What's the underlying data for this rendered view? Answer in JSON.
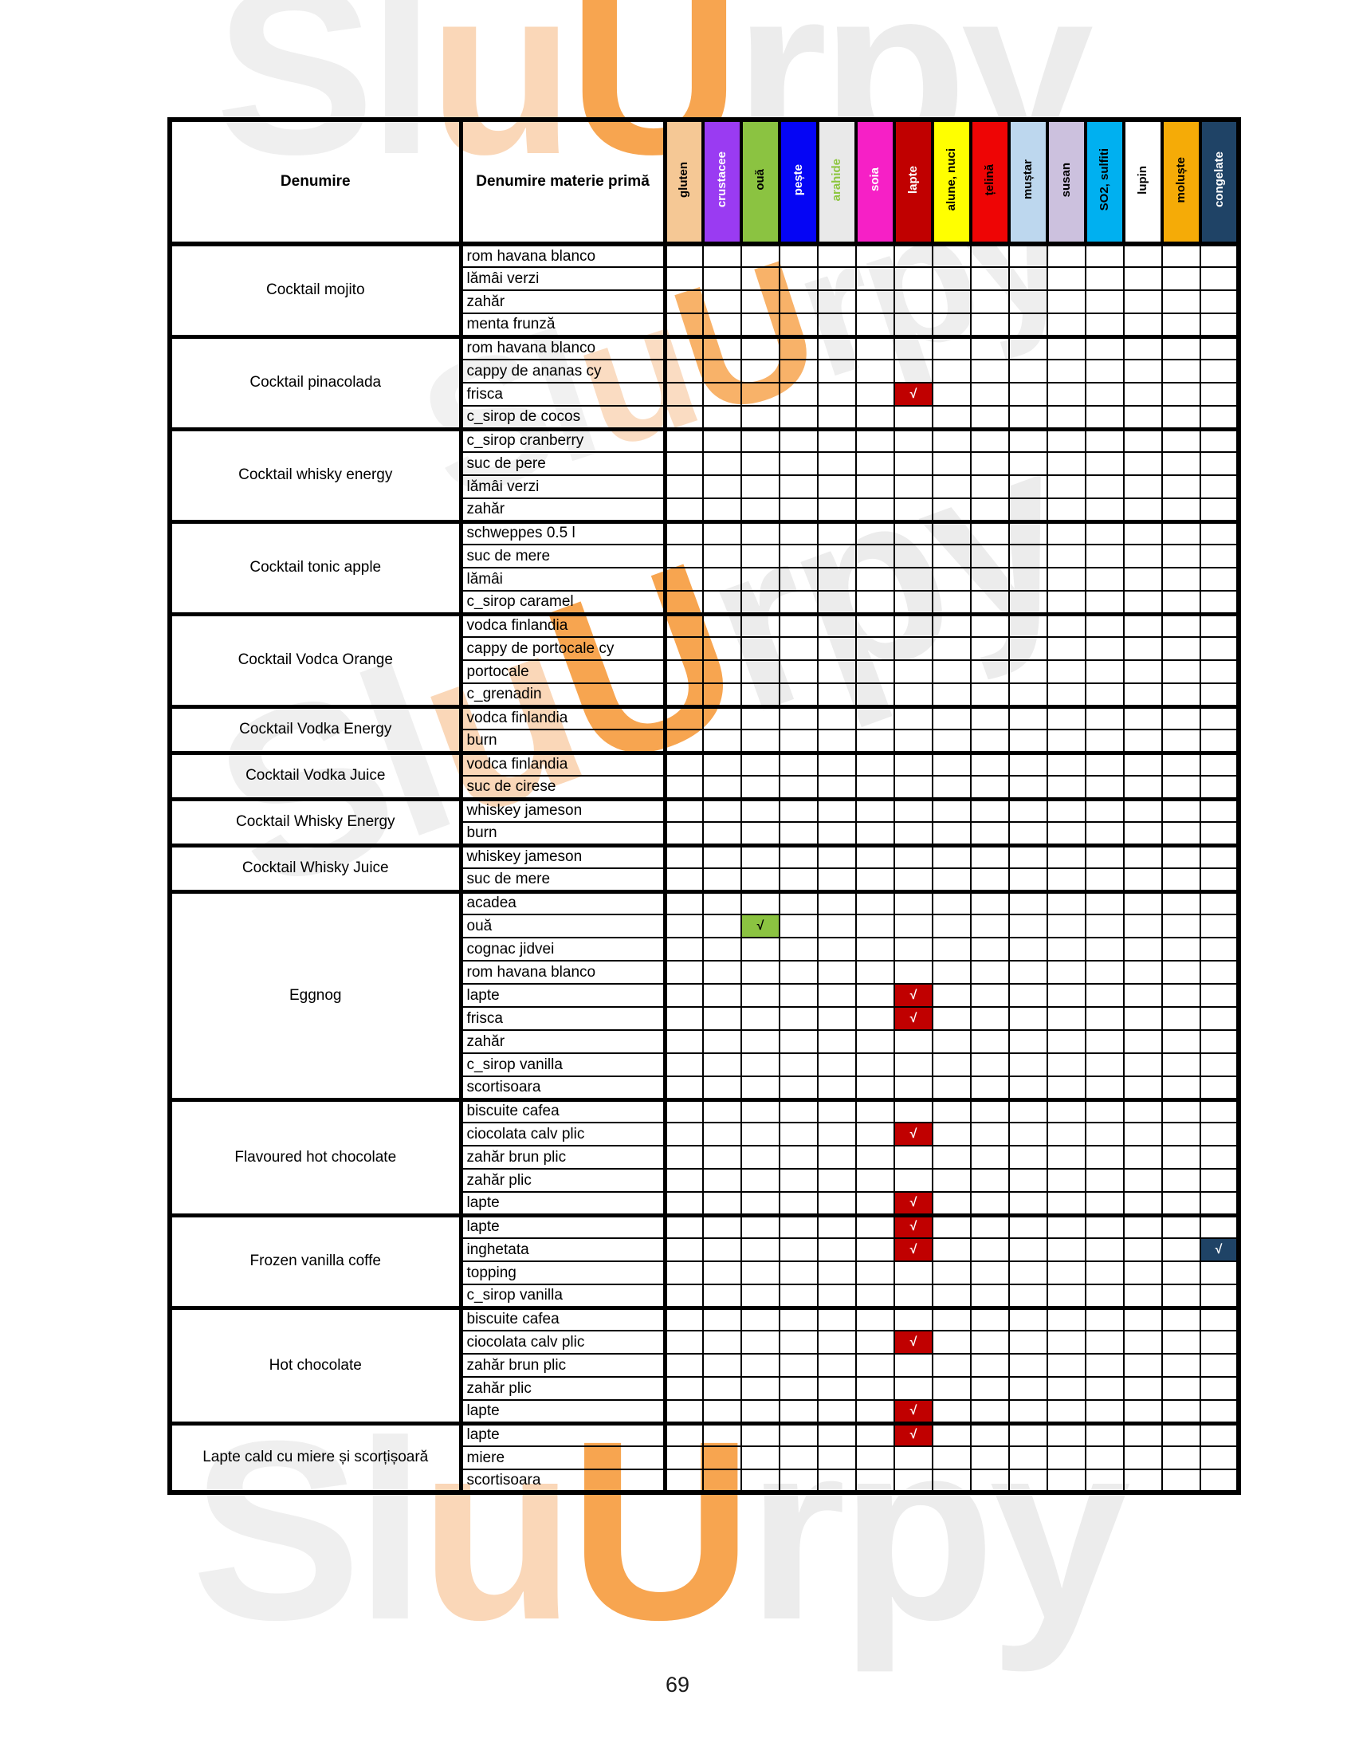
{
  "page": {
    "number": "69"
  },
  "watermark": {
    "text": "SluUrpy",
    "letter_colors": [
      "#EFEFEF",
      "#EFEFEF",
      "#FAD7B8",
      "#F7A550",
      "#ECECEC",
      "#ECECEC",
      "#ECECEC"
    ]
  },
  "table": {
    "column_headers": {
      "denumire": "Denumire",
      "materie_prima": "Denumire materie primă"
    },
    "check_mark": "√",
    "allergen_columns": [
      {
        "label": "gluten",
        "bg": "#F5C895",
        "fg": "#000000"
      },
      {
        "label": "crustacee",
        "bg": "#9A3BF2",
        "fg": "#FFFFFF"
      },
      {
        "label": "ouă",
        "bg": "#8BC341",
        "fg": "#000000"
      },
      {
        "label": "pește",
        "bg": "#0505F5",
        "fg": "#FFFFFF"
      },
      {
        "label": "arahide",
        "bg": "#E9E9E9",
        "fg": "#8DC63F"
      },
      {
        "label": "soia",
        "bg": "#F620C6",
        "fg": "#FFFFFF"
      },
      {
        "label": "lapte",
        "bg": "#C00000",
        "fg": "#FFFFFF"
      },
      {
        "label": "alune, nuci",
        "bg": "#FFFF00",
        "fg": "#000000"
      },
      {
        "label": "țelină",
        "bg": "#EE0505",
        "fg": "#000000"
      },
      {
        "label": "muștar",
        "bg": "#BDD7EE",
        "fg": "#000000"
      },
      {
        "label": "susan",
        "bg": "#CCC1DE",
        "fg": "#000000"
      },
      {
        "label": "SO2, sulfiti",
        "bg": "#00B0F0",
        "fg": "#000000"
      },
      {
        "label": "lupin",
        "bg": "#FFFFFF",
        "fg": "#000000"
      },
      {
        "label": "moluște",
        "bg": "#F5AB07",
        "fg": "#000000"
      },
      {
        "label": "congelate",
        "bg": "#1F4366",
        "fg": "#FFFFFF"
      }
    ],
    "groups": [
      {
        "name": "Cocktail mojito",
        "ingredients": [
          {
            "name": "rom havana blanco",
            "marks": []
          },
          {
            "name": "lămâi verzi",
            "marks": []
          },
          {
            "name": "zahăr",
            "marks": []
          },
          {
            "name": "menta frunză",
            "marks": []
          }
        ]
      },
      {
        "name": "Cocktail pinacolada",
        "ingredients": [
          {
            "name": "rom havana blanco",
            "marks": []
          },
          {
            "name": "cappy de ananas cy",
            "marks": []
          },
          {
            "name": "frisca",
            "marks": [
              6
            ]
          },
          {
            "name": "c_sirop de cocos",
            "marks": []
          }
        ]
      },
      {
        "name": "Cocktail whisky energy",
        "ingredients": [
          {
            "name": "c_sirop cranberry",
            "marks": []
          },
          {
            "name": "suc de pere",
            "marks": []
          },
          {
            "name": "lămâi verzi",
            "marks": []
          },
          {
            "name": "zahăr",
            "marks": []
          }
        ]
      },
      {
        "name": "Cocktail tonic apple",
        "ingredients": [
          {
            "name": "schweppes 0.5 l",
            "marks": []
          },
          {
            "name": "suc de mere",
            "marks": []
          },
          {
            "name": "lămâi",
            "marks": []
          },
          {
            "name": "c_sirop caramel",
            "marks": []
          }
        ]
      },
      {
        "name": "Cocktail Vodca Orange",
        "ingredients": [
          {
            "name": "vodca finlandia",
            "marks": []
          },
          {
            "name": "cappy de portocale cy",
            "marks": []
          },
          {
            "name": "portocale",
            "marks": []
          },
          {
            "name": "c_grenadin",
            "marks": []
          }
        ]
      },
      {
        "name": "Cocktail Vodka Energy",
        "ingredients": [
          {
            "name": "vodca finlandia",
            "marks": []
          },
          {
            "name": "burn",
            "marks": []
          }
        ]
      },
      {
        "name": "Cocktail Vodka Juice",
        "ingredients": [
          {
            "name": "vodca finlandia",
            "marks": []
          },
          {
            "name": "suc de cirese",
            "marks": []
          }
        ]
      },
      {
        "name": "Cocktail Whisky Energy",
        "ingredients": [
          {
            "name": "whiskey jameson",
            "marks": []
          },
          {
            "name": "burn",
            "marks": []
          }
        ]
      },
      {
        "name": "Cocktail Whisky Juice",
        "ingredients": [
          {
            "name": "whiskey jameson",
            "marks": []
          },
          {
            "name": "suc de mere",
            "marks": []
          }
        ]
      },
      {
        "name": "Eggnog",
        "ingredients": [
          {
            "name": "acadea",
            "marks": []
          },
          {
            "name": "ouă",
            "marks": [
              2
            ]
          },
          {
            "name": "cognac jidvei",
            "marks": []
          },
          {
            "name": "rom havana blanco",
            "marks": []
          },
          {
            "name": "lapte",
            "marks": [
              6
            ]
          },
          {
            "name": "frisca",
            "marks": [
              6
            ]
          },
          {
            "name": "zahăr",
            "marks": []
          },
          {
            "name": "c_sirop vanilla",
            "marks": []
          },
          {
            "name": "scortisoara",
            "marks": []
          }
        ]
      },
      {
        "name": "Flavoured hot chocolate",
        "ingredients": [
          {
            "name": "biscuite cafea",
            "marks": []
          },
          {
            "name": "ciocolata calv plic",
            "marks": [
              6
            ]
          },
          {
            "name": "zahăr brun plic",
            "marks": []
          },
          {
            "name": "zahăr plic",
            "marks": []
          },
          {
            "name": "lapte",
            "marks": [
              6
            ]
          }
        ]
      },
      {
        "name": "Frozen vanilla coffe",
        "ingredients": [
          {
            "name": "lapte",
            "marks": [
              6
            ]
          },
          {
            "name": "inghetata",
            "marks": [
              6,
              14
            ]
          },
          {
            "name": "topping",
            "marks": []
          },
          {
            "name": "c_sirop vanilla",
            "marks": []
          }
        ]
      },
      {
        "name": "Hot chocolate",
        "ingredients": [
          {
            "name": "biscuite cafea",
            "marks": []
          },
          {
            "name": "ciocolata calv plic",
            "marks": [
              6
            ]
          },
          {
            "name": "zahăr brun plic",
            "marks": []
          },
          {
            "name": "zahăr plic",
            "marks": []
          },
          {
            "name": "lapte",
            "marks": [
              6
            ]
          }
        ]
      },
      {
        "name": "Lapte cald cu miere și scorțișoară",
        "ingredients": [
          {
            "name": "lapte",
            "marks": [
              6
            ]
          },
          {
            "name": "miere",
            "marks": []
          },
          {
            "name": "scortisoara",
            "marks": []
          }
        ]
      }
    ]
  }
}
